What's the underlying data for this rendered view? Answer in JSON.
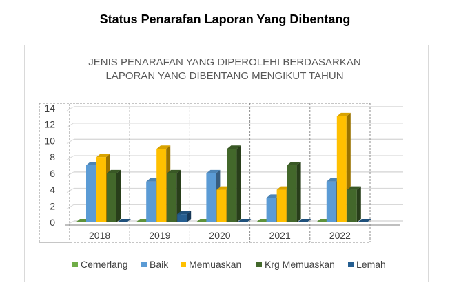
{
  "page_title": "Status Penarafan Laporan Yang Dibentang",
  "chart_data": {
    "type": "bar",
    "title": [
      "JENIS PENARAFAN YANG DIPEROLEHI BERDASARKAN",
      "LAPORAN YANG DIBENTANG MENGIKUT TAHUN"
    ],
    "categories": [
      "2018",
      "2019",
      "2020",
      "2021",
      "2022"
    ],
    "series": [
      {
        "name": "Cemerlang",
        "values": [
          0,
          0,
          0,
          0,
          0
        ],
        "color": "#70ad47"
      },
      {
        "name": "Baik",
        "values": [
          7,
          5,
          6,
          3,
          5
        ],
        "color": "#5b9bd5"
      },
      {
        "name": "Memuaskan",
        "values": [
          8,
          9,
          4,
          4,
          13
        ],
        "color": "#ffc000"
      },
      {
        "name": "Krg Memuaskan",
        "values": [
          6,
          6,
          9,
          7,
          4
        ],
        "color": "#43682b"
      },
      {
        "name": "Lemah",
        "values": [
          0,
          1,
          0,
          0,
          0
        ],
        "color": "#255e91"
      }
    ],
    "ylim": [
      0,
      14
    ],
    "yticks": [
      0,
      2,
      4,
      6,
      8,
      10,
      12,
      14
    ],
    "grid": true,
    "style": "3d-clustered-column",
    "legend": "bottom"
  }
}
